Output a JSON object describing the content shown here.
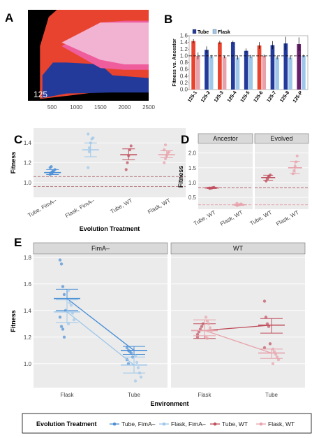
{
  "colors": {
    "tube_fima": "#4a8fd6",
    "flask_fima": "#9ec7ea",
    "tube_wt": "#c0505e",
    "flask_wt": "#e8a2ab",
    "muller_black": "#000000",
    "muller_red": "#e8432f",
    "muller_navy": "#233a9a",
    "muller_pink": "#f2b2d2",
    "muller_magenta": "#ef5d9d",
    "panel_bg": "#ebebeb",
    "strip_bg": "#d9d9d9"
  },
  "chart_data": [
    {
      "id": "A",
      "type": "area",
      "panel_label": "A",
      "annotation": "125",
      "x_ticks": [
        500,
        1000,
        1500,
        2000,
        2500
      ],
      "xlim": [
        0,
        2500
      ],
      "ylim": [
        0,
        1
      ],
      "layers": [
        {
          "color_key": "muller_black",
          "lower": [
            [
              0,
              0
            ],
            [
              2500,
              0
            ]
          ],
          "upper": [
            [
              0,
              1
            ],
            [
              2500,
              1
            ]
          ]
        },
        {
          "color_key": "muller_red",
          "lower": [
            [
              250,
              0.02
            ],
            [
              900,
              0.06
            ],
            [
              1500,
              0.1
            ],
            [
              2500,
              0.1
            ]
          ],
          "upper": [
            [
              250,
              0.6
            ],
            [
              430,
              0.92
            ],
            [
              600,
              1
            ],
            [
              2500,
              1
            ]
          ]
        },
        {
          "color_key": "muller_navy",
          "lower": [
            [
              300,
              0.03
            ],
            [
              800,
              0.08
            ],
            [
              1700,
              0.09
            ],
            [
              2500,
              0.09
            ]
          ],
          "upper": [
            [
              300,
              0.28
            ],
            [
              520,
              0.42
            ],
            [
              800,
              0.42
            ],
            [
              1500,
              0.4
            ],
            [
              1750,
              0.28
            ],
            [
              2500,
              0.25
            ]
          ]
        },
        {
          "color_key": "muller_magenta",
          "lower": [
            [
              700,
              0.6
            ],
            [
              1500,
              0.36
            ],
            [
              2000,
              0.34
            ],
            [
              2500,
              0.34
            ]
          ],
          "upper": [
            [
              700,
              0.6
            ],
            [
              1500,
              0.86
            ],
            [
              2000,
              0.88
            ],
            [
              2500,
              0.88
            ]
          ]
        },
        {
          "color_key": "muller_pink",
          "lower": [
            [
              700,
              0.64
            ],
            [
              1500,
              0.45
            ],
            [
              2000,
              0.4
            ],
            [
              2500,
              0.4
            ]
          ],
          "upper": [
            [
              700,
              0.64
            ],
            [
              1500,
              0.86
            ],
            [
              2000,
              0.86
            ],
            [
              2500,
              0.86
            ]
          ]
        }
      ]
    },
    {
      "id": "B",
      "type": "bar",
      "panel_label": "B",
      "ylabel": "Fitness vs. Ancestor",
      "ylim": [
        0,
        1.6
      ],
      "y_ticks": [
        0.0,
        0.2,
        0.4,
        0.6,
        0.8,
        1.0,
        1.2,
        1.4,
        1.6
      ],
      "hlines": [
        1.0
      ],
      "legend": [
        {
          "label": "Tube",
          "color_key": "muller_navy"
        },
        {
          "label": "Flask",
          "color_key": "flask_fima"
        }
      ],
      "groups": [
        {
          "label": "125-1",
          "tube": 1.44,
          "tube_err": 0.06,
          "flask": 1.0,
          "flask_err": 0.1,
          "tube_color_key": "muller_red",
          "flask_color_key": "flask_wt"
        },
        {
          "label": "125-2",
          "tube": 1.18,
          "tube_err": 0.1,
          "flask": 0.98,
          "flask_err": 0.05,
          "tube_color_key": "muller_navy",
          "flask_color_key": "flask_fima"
        },
        {
          "label": "125-3",
          "tube": 1.4,
          "tube_err": 0.05,
          "flask": 0.97,
          "flask_err": 0.04,
          "tube_color_key": "muller_red",
          "flask_color_key": "flask_wt"
        },
        {
          "label": "125-4",
          "tube": 1.41,
          "tube_err": 0.04,
          "flask": 0.95,
          "flask_err": 0.06,
          "tube_color_key": "muller_navy",
          "flask_color_key": "flask_fima"
        },
        {
          "label": "125-5",
          "tube": 1.15,
          "tube_err": 0.07,
          "flask": 0.98,
          "flask_err": 0.05,
          "tube_color_key": "muller_navy",
          "flask_color_key": "flask_fima"
        },
        {
          "label": "125-6",
          "tube": 1.31,
          "tube_err": 0.1,
          "flask": 1.0,
          "flask_err": 0.04,
          "tube_color_key": "muller_red",
          "flask_color_key": "flask_wt"
        },
        {
          "label": "125-7",
          "tube": 1.32,
          "tube_err": 0.12,
          "flask": 0.95,
          "flask_err": 0.05,
          "tube_color_key": "muller_navy",
          "flask_color_key": "flask_fima"
        },
        {
          "label": "125-8",
          "tube": 1.37,
          "tube_err": 0.2,
          "flask": 0.95,
          "flask_err": 0.05,
          "tube_color_key": "muller_navy",
          "flask_color_key": "flask_fima"
        },
        {
          "label": "125-P",
          "tube": 1.35,
          "tube_err": 0.2,
          "flask": 1.0,
          "flask_err": 0.04,
          "tube_color_key": "purple",
          "flask_color_key": "flask_fima"
        }
      ],
      "purple": "#6a1f6e"
    },
    {
      "id": "C",
      "type": "scatter",
      "panel_label": "C",
      "xlabel": "Evolution Treatment",
      "ylabel": "Fitness",
      "ylim": [
        0.85,
        1.55
      ],
      "y_ticks": [
        1.0,
        1.2,
        1.4
      ],
      "hlines": [
        1.06,
        0.96
      ],
      "categories": [
        "Tube, FimA–",
        "Flask, FimA–",
        "Tube, WT",
        "Flask, WT"
      ],
      "series": [
        {
          "color_key": "tube_fima",
          "mean": 1.1,
          "ci": [
            1.08,
            1.13
          ],
          "points": [
            1.08,
            1.1,
            1.11,
            1.12,
            1.13,
            1.15,
            1.16,
            1.1
          ]
        },
        {
          "color_key": "flask_fima",
          "mean": 1.33,
          "ci": [
            1.26,
            1.4
          ],
          "points": [
            1.15,
            1.31,
            1.4,
            1.44,
            1.45,
            1.49,
            1.35
          ]
        },
        {
          "color_key": "tube_wt",
          "mean": 1.28,
          "ci": [
            1.23,
            1.34
          ],
          "points": [
            1.13,
            1.2,
            1.27,
            1.33,
            1.37
          ]
        },
        {
          "color_key": "flask_wt",
          "mean": 1.28,
          "ci": [
            1.25,
            1.32
          ],
          "points": [
            1.2,
            1.24,
            1.27,
            1.3,
            1.31,
            1.33,
            1.38
          ]
        }
      ]
    },
    {
      "id": "D",
      "type": "scatter",
      "panel_label": "D",
      "xlabel": "Evolution Treatment",
      "ylabel": "Fitness",
      "ylim": [
        0.1,
        2.3
      ],
      "y_ticks": [
        0.5,
        1.0,
        1.5,
        2.0
      ],
      "hlines": [
        0.82,
        0.25
      ],
      "facets": [
        {
          "strip": "Ancestor",
          "categories": [
            "Tube, WT",
            "Flask, WT"
          ],
          "series": [
            {
              "color_key": "tube_wt",
              "mean": 0.82,
              "ci": [
                0.8,
                0.84
              ],
              "points": [
                0.8,
                0.81,
                0.82,
                0.83,
                0.84,
                0.82
              ]
            },
            {
              "color_key": "flask_wt",
              "mean": 0.25,
              "ci": [
                0.23,
                0.27
              ],
              "points": [
                0.22,
                0.24,
                0.25,
                0.26,
                0.28,
                0.3
              ]
            }
          ]
        },
        {
          "strip": "Evolved",
          "categories": [
            "Tube, WT",
            "Flask, WT"
          ],
          "series": [
            {
              "color_key": "tube_wt",
              "mean": 1.17,
              "ci": [
                1.08,
                1.25
              ],
              "points": [
                1.05,
                1.12,
                1.18,
                1.22,
                1.26
              ]
            },
            {
              "color_key": "flask_wt",
              "mean": 1.5,
              "ci": [
                1.3,
                1.72
              ],
              "points": [
                1.3,
                1.4,
                1.55,
                1.7,
                1.9
              ]
            }
          ]
        }
      ]
    },
    {
      "id": "E",
      "type": "scatter",
      "panel_label": "E",
      "xlabel": "Environment",
      "ylabel": "Fitness",
      "ylim": [
        0.82,
        1.82
      ],
      "y_ticks": [
        1.0,
        1.2,
        1.4,
        1.6,
        1.8
      ],
      "facets": [
        {
          "strip": "FimA–",
          "categories": [
            "Flask",
            "Tube"
          ],
          "series": [
            {
              "color_key": "tube_fima",
              "flask_mean": 1.49,
              "flask_ci": [
                1.4,
                1.56
              ],
              "tube_mean": 1.1,
              "tube_ci": [
                1.07,
                1.13
              ],
              "flask_points": [
                1.78,
                1.75,
                1.58,
                1.52,
                1.4,
                1.35,
                1.28,
                1.26,
                1.2
              ],
              "tube_points": [
                1.12,
                1.1,
                1.09,
                1.08,
                1.05,
                1.03,
                1.0
              ]
            },
            {
              "color_key": "flask_fima",
              "flask_mean": 1.39,
              "flask_ci": [
                1.31,
                1.48
              ],
              "tube_mean": 0.99,
              "tube_ci": [
                0.93,
                1.05
              ],
              "flask_points": [
                1.55,
                1.46,
                1.44,
                1.38,
                1.33,
                1.3
              ],
              "tube_points": [
                1.06,
                1.01,
                0.97,
                0.93,
                0.9,
                0.87
              ]
            }
          ]
        },
        {
          "strip": "WT",
          "categories": [
            "Flask",
            "Tube"
          ],
          "series": [
            {
              "color_key": "tube_wt",
              "flask_mean": 1.25,
              "flask_ci": [
                1.19,
                1.3
              ],
              "tube_mean": 1.29,
              "tube_ci": [
                1.23,
                1.34
              ],
              "flask_points": [
                1.22,
                1.24,
                1.26,
                1.28,
                1.3,
                1.2
              ],
              "tube_points": [
                1.47,
                1.35,
                1.3,
                1.28,
                1.15,
                1.12
              ]
            },
            {
              "color_key": "flask_wt",
              "flask_mean": 1.25,
              "flask_ci": [
                1.21,
                1.33
              ],
              "tube_mean": 1.08,
              "tube_ci": [
                1.04,
                1.11
              ],
              "flask_points": [
                1.35,
                1.32,
                1.3,
                1.27,
                1.25,
                1.2,
                1.19
              ],
              "tube_points": [
                1.11,
                1.09,
                1.07,
                1.05,
                1.03,
                1.0
              ]
            }
          ]
        }
      ]
    }
  ],
  "legend": {
    "title": "Evolution Treatment",
    "entries": [
      {
        "label": "Tube, FimA–",
        "color_key": "tube_fima"
      },
      {
        "label": "Flask, FimA–",
        "color_key": "flask_fima"
      },
      {
        "label": "Tube, WT",
        "color_key": "tube_wt"
      },
      {
        "label": "Flask, WT",
        "color_key": "flask_wt"
      }
    ]
  }
}
